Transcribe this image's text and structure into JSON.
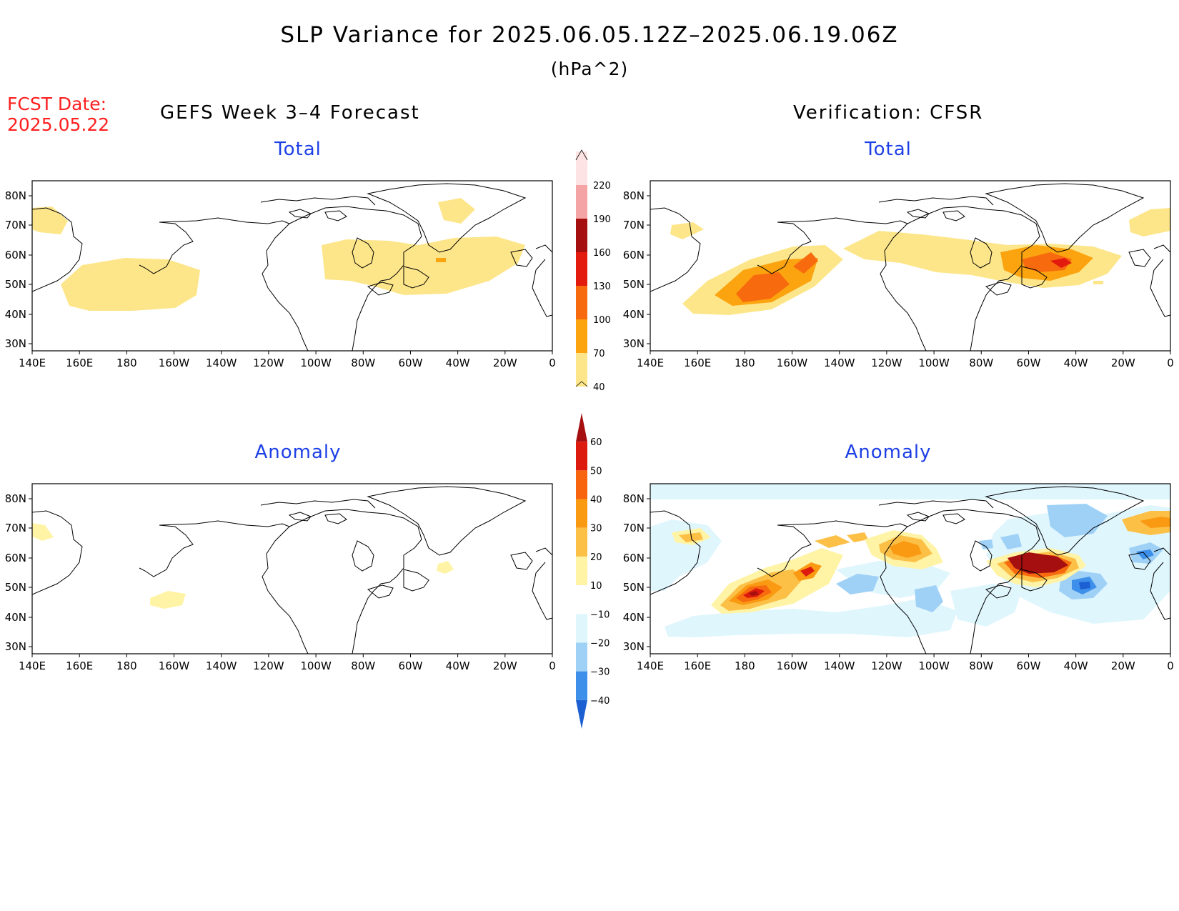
{
  "title": "SLP Variance for 2025.06.05.12Z–2025.06.19.06Z",
  "units": "(hPa^2)",
  "fcst_label": "FCST Date:",
  "fcst_date": "2025.05.22",
  "left_header": "GEFS Week 3–4 Forecast",
  "right_header": "Verification: CFSR",
  "panels": [
    {
      "id": "forecast-total",
      "subtitle": "Total"
    },
    {
      "id": "verification-total",
      "subtitle": "Total"
    },
    {
      "id": "forecast-anomaly",
      "subtitle": "Anomaly"
    },
    {
      "id": "verification-anomaly",
      "subtitle": "Anomaly"
    }
  ],
  "lon_labels": [
    "140E",
    "160E",
    "180",
    "160W",
    "140W",
    "120W",
    "100W",
    "80W",
    "60W",
    "40W",
    "20W",
    "0"
  ],
  "lat_labels": [
    "80N",
    "70N",
    "60N",
    "50N",
    "40N",
    "30N"
  ],
  "total_colorbar": {
    "levels": [
      "40",
      "70",
      "100",
      "130",
      "160",
      "190",
      "220"
    ],
    "colors": [
      "#fde68a",
      "#fca310",
      "#f76b0e",
      "#e31b0e",
      "#a50f0f",
      "#f4a4a4",
      "#fde3e3"
    ]
  },
  "anomaly_colorbar": {
    "levels": [
      "60",
      "50",
      "40",
      "30",
      "20",
      "10",
      "−10",
      "−20",
      "−30",
      "−40"
    ],
    "colors_top_to_bottom": [
      "#a50f0f",
      "#dd1a0e",
      "#f7640d",
      "#fa9a12",
      "#fcc047",
      "#fff3a6",
      "#ffffff",
      "#dff6fd",
      "#9fd1f7",
      "#3d8fea",
      "#1b5fd2"
    ]
  },
  "colors": {
    "land_outline": "#000000",
    "subtitle": "#1c3fe6",
    "fcst": "#ff2020"
  }
}
